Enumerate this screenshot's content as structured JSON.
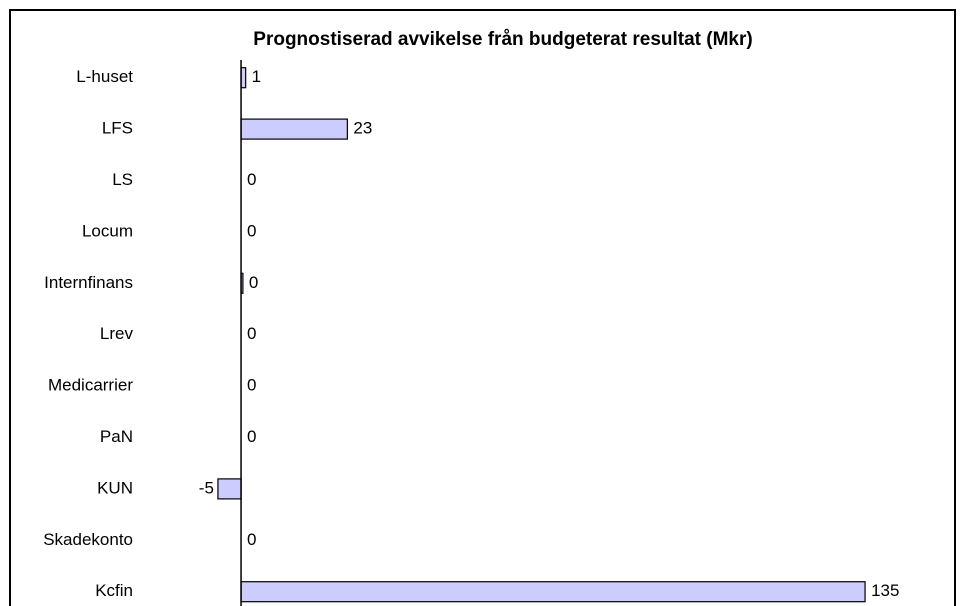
{
  "chart_data": {
    "type": "bar",
    "orientation": "horizontal",
    "title": "Prognostiserad avvikelse från budgeterat resultat (Mkr)",
    "categories": [
      "L-huset",
      "LFS",
      "LS",
      "Locum",
      "Internfinans",
      "Lrev",
      "Medicarrier",
      "PaN",
      "KUN",
      "Skadekonto",
      "Kcfin"
    ],
    "values": [
      1,
      23,
      0,
      0,
      0.4,
      0,
      0,
      0,
      -5,
      0,
      135
    ],
    "value_labels": [
      "1",
      "23",
      "0",
      "0",
      "0",
      "0",
      "0",
      "0",
      "-5",
      "0",
      "135"
    ],
    "color": "#ccccff",
    "xlim": [
      -20,
      150
    ]
  }
}
